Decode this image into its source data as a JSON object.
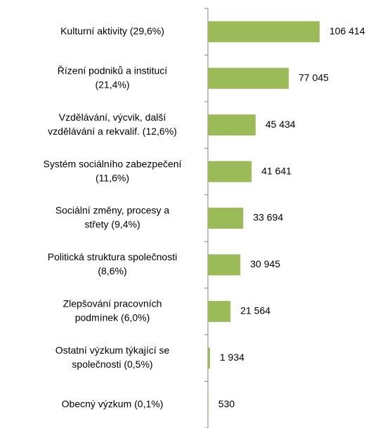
{
  "chart_data": {
    "type": "bar",
    "orientation": "horizontal",
    "categories": [
      [
        "Kulturní aktivity (29,6%)"
      ],
      [
        "Řízení podniků a institucí",
        "(21,4%)"
      ],
      [
        "Vzdělávání, výcvik, další",
        "vzdělávání a rekvalif. (12,6%)"
      ],
      [
        "Systém sociálního zabezpečení",
        "(11,6%)"
      ],
      [
        "Sociální změny, procesy a",
        "střety (9,4%)"
      ],
      [
        "Politická struktura společnosti",
        "(8,6%)"
      ],
      [
        "Zlepšování pracovních",
        "podmínek (6,0%)"
      ],
      [
        "Ostatní výzkum týkající se",
        "společnosti (0,5%)"
      ],
      [
        "Obecný výzkum (0,1%)"
      ]
    ],
    "values": [
      106414,
      77045,
      45434,
      41641,
      33694,
      30945,
      21564,
      1934,
      530
    ],
    "value_labels": [
      "106 414",
      "77 045",
      "45 434",
      "41 641",
      "33 694",
      "30 945",
      "21 564",
      "1 934",
      "530"
    ],
    "color": "#9bbb59"
  }
}
